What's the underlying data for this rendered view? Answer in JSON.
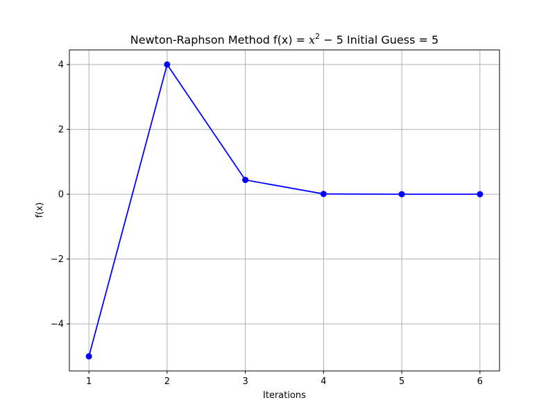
{
  "chart_data": {
    "type": "line",
    "title_prefix": "Newton-Raphson Method f(x) = ",
    "title_var": "x",
    "title_exp": "2",
    "title_op": " − 5",
    "title_suffix": " Initial Guess = 5",
    "xlabel": "Iterations",
    "ylabel": "f(x)",
    "x": [
      1,
      2,
      3,
      4,
      5,
      6
    ],
    "y": [
      -5,
      4,
      0.44,
      0.009,
      0.0,
      0.0
    ],
    "xlim": [
      0.75,
      6.25
    ],
    "ylim": [
      -5.45,
      4.45
    ],
    "xticks": [
      1,
      2,
      3,
      4,
      5,
      6
    ],
    "xtick_labels": [
      "1",
      "2",
      "3",
      "4",
      "5",
      "6"
    ],
    "yticks": [
      -4,
      -2,
      0,
      2,
      4
    ],
    "ytick_labels": [
      "−4",
      "−2",
      "0",
      "2",
      "4"
    ],
    "grid": true,
    "series_color": "#0000ff",
    "grid_color": "#b0b0b0"
  }
}
